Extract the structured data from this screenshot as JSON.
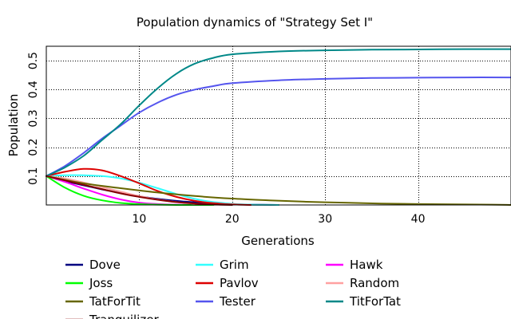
{
  "chart_data": {
    "type": "line",
    "title": "Population dynamics of \"Strategy Set I\"",
    "xlabel": "Generations",
    "ylabel": "Population",
    "xlim": [
      0,
      50
    ],
    "ylim": [
      0,
      0.55
    ],
    "xticks": [
      10,
      20,
      30,
      40
    ],
    "yticks": [
      0.1,
      0.2,
      0.3,
      0.4,
      0.5
    ],
    "grid": true,
    "legend_position": "bottom",
    "series": [
      {
        "name": "Dove",
        "color": "#000080",
        "x": [
          0,
          2,
          4,
          6,
          8,
          10,
          12,
          14,
          16,
          18,
          20,
          22,
          25
        ],
        "values": [
          0.1,
          0.083,
          0.068,
          0.054,
          0.041,
          0.03,
          0.021,
          0.014,
          0.009,
          0.005,
          0.003,
          0.001,
          0.0
        ]
      },
      {
        "name": "Grim",
        "color": "#33ffff",
        "x": [
          0,
          2,
          4,
          6,
          8,
          10,
          12,
          14,
          16,
          18,
          20,
          22,
          25
        ],
        "values": [
          0.1,
          0.103,
          0.103,
          0.1,
          0.092,
          0.077,
          0.058,
          0.038,
          0.021,
          0.01,
          0.004,
          0.001,
          0.0
        ]
      },
      {
        "name": "Hawk",
        "color": "#ff00ff",
        "x": [
          0,
          2,
          4,
          6,
          8,
          10,
          12,
          14,
          16,
          18
        ],
        "values": [
          0.1,
          0.08,
          0.057,
          0.036,
          0.019,
          0.008,
          0.003,
          0.001,
          0.0,
          0.0
        ]
      },
      {
        "name": "Joss",
        "color": "#00ff00",
        "x": [
          0,
          2,
          4,
          6,
          8,
          10,
          12,
          14,
          16,
          18
        ],
        "values": [
          0.1,
          0.06,
          0.032,
          0.016,
          0.007,
          0.003,
          0.001,
          0.0,
          0.0,
          0.0
        ]
      },
      {
        "name": "Pavlov",
        "color": "#dd0000",
        "x": [
          0,
          2,
          4,
          6,
          8,
          10,
          12,
          14,
          16,
          18,
          20,
          22
        ],
        "values": [
          0.1,
          0.115,
          0.125,
          0.12,
          0.1,
          0.075,
          0.048,
          0.028,
          0.014,
          0.006,
          0.002,
          0.0
        ]
      },
      {
        "name": "Random",
        "color": "#ffa0a0",
        "x": [
          0,
          2,
          4,
          6,
          8,
          10,
          12,
          14,
          16,
          18,
          20
        ],
        "values": [
          0.1,
          0.092,
          0.078,
          0.062,
          0.046,
          0.031,
          0.019,
          0.01,
          0.004,
          0.001,
          0.0
        ]
      },
      {
        "name": "TatForTit",
        "color": "#666600",
        "x": [
          0,
          4,
          8,
          12,
          16,
          20,
          24,
          28,
          32,
          36,
          40,
          44,
          48,
          50
        ],
        "values": [
          0.1,
          0.075,
          0.058,
          0.043,
          0.031,
          0.022,
          0.016,
          0.011,
          0.008,
          0.005,
          0.003,
          0.002,
          0.001,
          0.0
        ]
      },
      {
        "name": "Tester",
        "color": "#5555ee",
        "x": [
          0,
          2,
          4,
          6,
          8,
          10,
          12,
          14,
          16,
          18,
          20,
          25,
          30,
          35,
          40,
          45,
          50
        ],
        "values": [
          0.1,
          0.135,
          0.18,
          0.23,
          0.275,
          0.32,
          0.355,
          0.382,
          0.4,
          0.412,
          0.422,
          0.432,
          0.437,
          0.44,
          0.441,
          0.442,
          0.442
        ]
      },
      {
        "name": "TitForTat",
        "color": "#008888",
        "x": [
          0,
          2,
          4,
          6,
          8,
          10,
          12,
          14,
          16,
          18,
          20,
          25,
          30,
          35,
          40,
          45,
          50
        ],
        "values": [
          0.1,
          0.13,
          0.17,
          0.225,
          0.28,
          0.345,
          0.405,
          0.455,
          0.49,
          0.51,
          0.522,
          0.532,
          0.536,
          0.538,
          0.539,
          0.54,
          0.54
        ]
      },
      {
        "name": "Tranquilizer",
        "color": "#880000",
        "x": [
          0,
          2,
          4,
          6,
          8,
          10,
          12,
          14,
          16,
          18,
          20
        ],
        "values": [
          0.1,
          0.085,
          0.07,
          0.055,
          0.04,
          0.028,
          0.018,
          0.01,
          0.005,
          0.002,
          0.0
        ]
      }
    ]
  }
}
